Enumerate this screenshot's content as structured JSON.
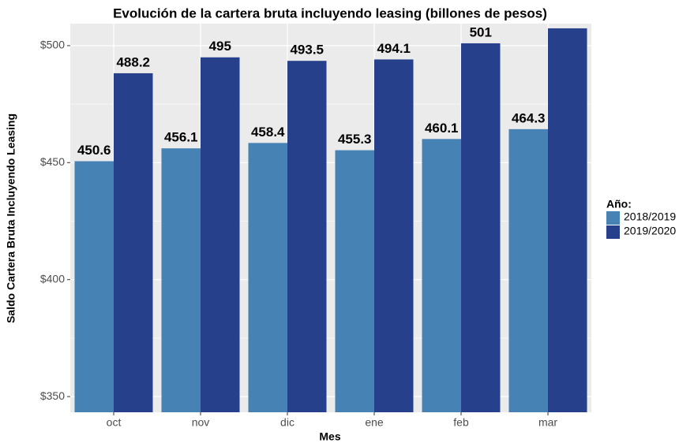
{
  "chart_data": {
    "type": "bar",
    "title": "Evolución de la cartera bruta incluyendo leasing (billones de pesos)",
    "x_label": "Mes",
    "y_label": "Saldo Cartera Bruta Incluyendo Leasing",
    "categories": [
      "oct",
      "nov",
      "dic",
      "ene",
      "feb",
      "mar"
    ],
    "series": [
      {
        "name": "2018/2019",
        "color": "#4682B4",
        "values": [
          450.6,
          456.1,
          458.4,
          455.3,
          460.1,
          464.3
        ]
      },
      {
        "name": "2019/2020",
        "color": "#27408B",
        "values": [
          488.2,
          495,
          493.5,
          494.1,
          501,
          507.4
        ]
      }
    ],
    "ylim": [
      343.3,
      509.4
    ],
    "yticks": [
      {
        "value": 350,
        "label": "$350"
      },
      {
        "value": 400,
        "label": "$400"
      },
      {
        "value": 450,
        "label": "$450"
      },
      {
        "value": 500,
        "label": "$500"
      }
    ],
    "legend_title": "Año:",
    "legend": "right",
    "grid": true
  }
}
